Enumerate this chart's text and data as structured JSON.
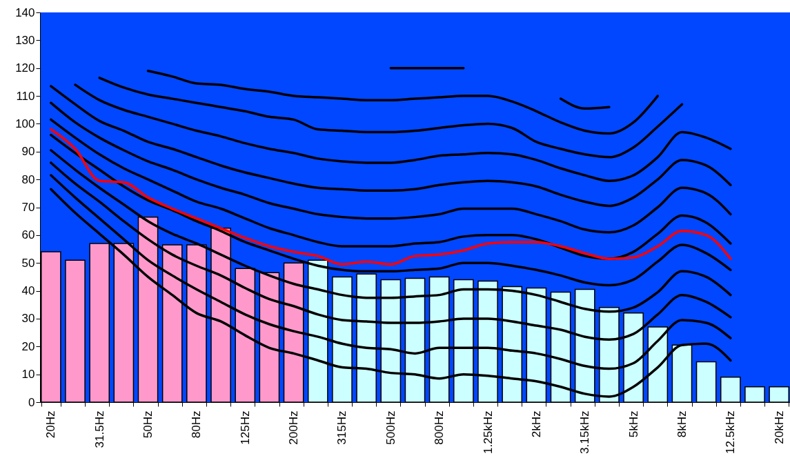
{
  "chart_data": {
    "type": "bar",
    "categories": [
      "20Hz",
      null,
      "31.5Hz",
      null,
      "50Hz",
      null,
      "80Hz",
      null,
      "125Hz",
      null,
      "200Hz",
      null,
      "315Hz",
      null,
      "500Hz",
      null,
      "800Hz",
      null,
      "1.25kHz",
      null,
      "2kHz",
      null,
      "3.15kHz",
      null,
      "5kHz",
      null,
      "8kHz",
      null,
      "12.5kHz",
      null,
      "20kHz"
    ],
    "ylim": [
      0,
      140
    ],
    "yticks": [
      0,
      10,
      20,
      30,
      40,
      50,
      60,
      70,
      80,
      90,
      100,
      110,
      120,
      130,
      140
    ],
    "series": [
      {
        "colors": [
          "#ff99cc",
          "#ff99cc",
          "#ff99cc",
          "#ff99cc",
          "#ff99cc",
          "#ff99cc",
          "#ff99cc",
          "#ff99cc",
          "#ff99cc",
          "#ff99cc",
          "#ff99cc",
          "#ccffff",
          "#ccffff",
          "#ccffff",
          "#ccffff",
          "#ccffff",
          "#ccffff",
          "#ccffff",
          "#ccffff",
          "#ccffff",
          "#ccffff",
          "#ccffff",
          "#ccffff",
          "#ccffff",
          "#ccffff",
          "#ccffff",
          "#ccffff",
          "#ccffff",
          "#ccffff",
          "#ccffff",
          "#ccffff"
        ],
        "values": [
          54,
          51,
          57,
          57,
          66.5,
          56.5,
          56.5,
          62.5,
          48,
          46.5,
          50,
          51,
          45,
          46,
          44,
          44.5,
          45,
          44,
          43.5,
          41.5,
          41,
          39.5,
          40.5,
          34,
          32,
          27,
          20.5,
          14.5,
          9,
          5.5,
          5.5
        ]
      },
      {
        "type": "line",
        "color": "#000000",
        "values": [
          76.5,
          68,
          60.5,
          53,
          45,
          38.5,
          32,
          29,
          24,
          19.5,
          17.5,
          15,
          12.5,
          12,
          10.5,
          10,
          8.5,
          10,
          9.5,
          8.5,
          7.5,
          5.5,
          3,
          2,
          5.5,
          12.5,
          20.5,
          21,
          15,
          null,
          null
        ]
      },
      {
        "type": "line",
        "color": "#000000",
        "values": [
          81.5,
          73.5,
          66,
          58.5,
          51,
          45.5,
          40.5,
          36,
          31.5,
          28,
          25.5,
          23.5,
          21,
          19.5,
          19,
          17.5,
          19.5,
          19.5,
          19.5,
          18.5,
          17.5,
          15.5,
          13,
          12,
          14,
          22,
          29.5,
          28.5,
          23,
          null,
          null
        ]
      },
      {
        "type": "line",
        "color": "#000000",
        "values": [
          86,
          78.5,
          72,
          65,
          58.5,
          53,
          49,
          45.5,
          41,
          37,
          34.5,
          31.5,
          29.5,
          29,
          28.5,
          28.5,
          29,
          30,
          30,
          29,
          27.5,
          26,
          23.5,
          22.5,
          24.5,
          31.5,
          38.5,
          36,
          30.5,
          null,
          null
        ]
      },
      {
        "type": "line",
        "color": "#000000",
        "values": [
          90.5,
          83.5,
          77,
          71,
          65,
          60.5,
          57,
          53,
          49,
          45.5,
          42.5,
          40.5,
          38.5,
          37.5,
          37.5,
          38,
          38.5,
          40.5,
          40.5,
          40,
          38.5,
          36,
          33.5,
          32.5,
          34,
          39.5,
          47,
          45,
          38.5,
          null,
          null
        ]
      },
      {
        "type": "line",
        "color": "#000000",
        "values": [
          96,
          89.5,
          83.5,
          77.5,
          72.5,
          69,
          65,
          61.5,
          57.5,
          54.5,
          51.5,
          49,
          47.5,
          47,
          47,
          47.5,
          48,
          50,
          50,
          49,
          47.5,
          45.5,
          43,
          42,
          44,
          50.5,
          56.5,
          53.5,
          47.5,
          null,
          null
        ]
      },
      {
        "type": "line",
        "color": "#000000",
        "values": [
          101.5,
          95,
          89,
          84,
          80,
          76,
          72,
          69.5,
          66,
          62.5,
          60,
          57.5,
          56,
          56,
          56,
          57,
          57.5,
          59.5,
          60,
          60,
          58.5,
          55.5,
          52.5,
          51.5,
          54,
          60.5,
          67,
          64.5,
          57,
          null,
          null
        ]
      },
      {
        "type": "line",
        "color": "#000000",
        "values": [
          107.5,
          100.5,
          95,
          90.5,
          86.5,
          83.5,
          80,
          77,
          74.5,
          71.5,
          69.5,
          67.5,
          66.5,
          66,
          66,
          66.5,
          67.5,
          69.5,
          69.5,
          69.5,
          67.5,
          65,
          62,
          61,
          63.5,
          70,
          77,
          75,
          67.5,
          null,
          null
        ]
      },
      {
        "type": "line",
        "color": "#000000",
        "values": [
          113.5,
          107,
          101,
          97.5,
          93.5,
          91,
          88,
          85,
          82.5,
          80.5,
          78.5,
          77,
          76.5,
          76,
          76,
          76.5,
          78,
          79,
          79.5,
          79,
          77.5,
          74.5,
          72,
          70.5,
          73.5,
          80,
          87,
          85,
          78,
          null,
          null
        ]
      },
      {
        "type": "line",
        "color": "#000000",
        "values": [
          null,
          114,
          108.5,
          105,
          102.5,
          100,
          97.5,
          95.5,
          93,
          91,
          89.5,
          87.5,
          86.5,
          86,
          86,
          87,
          88.5,
          89,
          89.5,
          89,
          87,
          84,
          81.5,
          79.5,
          81.5,
          88,
          97,
          95,
          91,
          null,
          null
        ]
      },
      {
        "type": "line",
        "color": "#000000",
        "values": [
          null,
          null,
          116.5,
          113,
          110.5,
          109,
          107.5,
          106,
          104.5,
          102.5,
          101.5,
          98,
          97.5,
          97,
          97,
          97.5,
          98.5,
          99.5,
          100,
          98.5,
          93.5,
          91,
          89,
          88,
          91.5,
          99,
          107,
          null,
          null,
          null,
          null
        ]
      },
      {
        "type": "line",
        "color": "#000000",
        "values": [
          null,
          null,
          null,
          null,
          119,
          117,
          114.5,
          114,
          112.5,
          111.5,
          110,
          109.5,
          109,
          108.5,
          108.5,
          109,
          109.5,
          110,
          110,
          108,
          104.5,
          100.5,
          97.5,
          96.5,
          100.5,
          110,
          null,
          null,
          null,
          null,
          null
        ]
      },
      {
        "type": "line",
        "color": "#000000",
        "values": [
          null,
          null,
          null,
          null,
          null,
          null,
          null,
          null,
          null,
          null,
          null,
          null,
          null,
          null,
          120,
          120,
          120,
          120,
          null,
          null,
          null,
          109,
          105.5,
          106,
          null,
          null,
          null,
          null,
          null,
          null,
          null
        ]
      },
      {
        "type": "line",
        "color": "#ff0000",
        "values": [
          98,
          91,
          79.5,
          79,
          73.5,
          69.5,
          66,
          62.5,
          59,
          56,
          54,
          52.5,
          49.5,
          50.5,
          49.5,
          52.5,
          53,
          54.5,
          57,
          57.5,
          57.5,
          56,
          53.5,
          51.5,
          52,
          56,
          61.5,
          60,
          51.5,
          null,
          null
        ]
      }
    ]
  }
}
